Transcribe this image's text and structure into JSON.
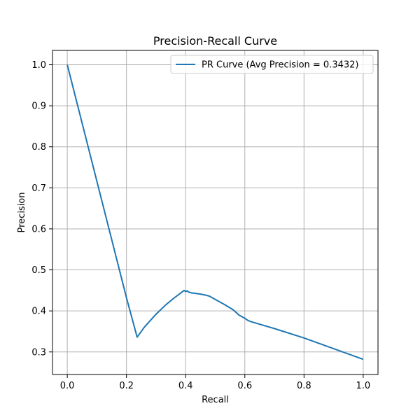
{
  "chart_data": {
    "type": "line",
    "title": "Precision-Recall Curve",
    "xlabel": "Recall",
    "ylabel": "Precision",
    "xlim": [
      -0.05,
      1.05
    ],
    "ylim": [
      0.245,
      1.035
    ],
    "xticks": [
      0.0,
      0.2,
      0.4,
      0.6,
      0.8,
      1.0
    ],
    "xtick_labels": [
      "0.0",
      "0.2",
      "0.4",
      "0.6",
      "0.8",
      "1.0"
    ],
    "yticks": [
      0.3,
      0.4,
      0.5,
      0.6,
      0.7,
      0.8,
      0.9,
      1.0
    ],
    "ytick_labels": [
      "0.3",
      "0.4",
      "0.5",
      "0.6",
      "0.7",
      "0.8",
      "0.9",
      "1.0"
    ],
    "grid": true,
    "legend_position": "upper right",
    "series": [
      {
        "name": "PR Curve (Avg Precision = 0.3432)",
        "color": "#1f77b4",
        "points": [
          [
            0.0,
            1.0
          ],
          [
            0.05,
            0.858
          ],
          [
            0.1,
            0.716
          ],
          [
            0.15,
            0.574
          ],
          [
            0.2,
            0.432
          ],
          [
            0.236,
            0.336
          ],
          [
            0.26,
            0.36
          ],
          [
            0.3,
            0.392
          ],
          [
            0.33,
            0.413
          ],
          [
            0.36,
            0.431
          ],
          [
            0.395,
            0.45
          ],
          [
            0.4,
            0.447
          ],
          [
            0.405,
            0.449
          ],
          [
            0.41,
            0.446
          ],
          [
            0.42,
            0.444
          ],
          [
            0.45,
            0.441
          ],
          [
            0.47,
            0.438
          ],
          [
            0.48,
            0.436
          ],
          [
            0.5,
            0.428
          ],
          [
            0.53,
            0.416
          ],
          [
            0.56,
            0.403
          ],
          [
            0.58,
            0.39
          ],
          [
            0.6,
            0.382
          ],
          [
            0.61,
            0.377
          ],
          [
            0.62,
            0.374
          ],
          [
            0.7,
            0.357
          ],
          [
            0.8,
            0.334
          ],
          [
            0.9,
            0.308
          ],
          [
            1.0,
            0.282
          ]
        ]
      }
    ]
  }
}
